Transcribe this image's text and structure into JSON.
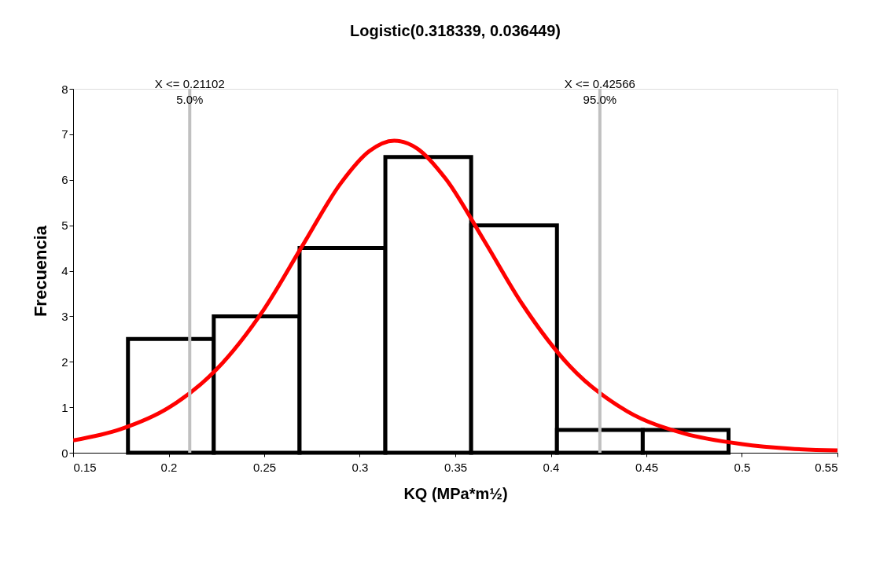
{
  "chart_data": {
    "type": "histogram",
    "title": "Logistic(0.318339, 0.036449)",
    "xlabel": "KQ (MPa*m½)",
    "ylabel": "Frecuencia",
    "bins": [
      0.1787,
      0.2236,
      0.2685,
      0.3134,
      0.3583,
      0.4032,
      0.4481,
      0.493
    ],
    "values": [
      2.5,
      3,
      4.5,
      6.5,
      5,
      0.5,
      0.5
    ],
    "color": "#ffffff",
    "series": [
      {
        "type": "line",
        "color": "#ff0000",
        "x": [
          0.15,
          0.175,
          0.2,
          0.225,
          0.25,
          0.27,
          0.29,
          0.305,
          0.318,
          0.33,
          0.345,
          0.365,
          0.385,
          0.41,
          0.44,
          0.47,
          0.5,
          0.525,
          0.55
        ],
        "values": [
          0.27,
          0.52,
          0.99,
          1.83,
          3.16,
          4.55,
          5.92,
          6.63,
          6.86,
          6.69,
          6.02,
          4.67,
          3.27,
          1.9,
          0.91,
          0.42,
          0.19,
          0.09,
          0.05
        ]
      }
    ],
    "ref_lines": [
      {
        "axis": "x",
        "value": 0.21102,
        "label": "X <= 0.21102\n5.0%",
        "color": "#c0c0c0"
      },
      {
        "axis": "x",
        "value": 0.42566,
        "label": "X <= 0.42566\n95.0%",
        "color": "#c0c0c0"
      }
    ],
    "xlim": [
      0.15,
      0.55
    ],
    "xticks": [
      0.15,
      0.2,
      0.25,
      0.3,
      0.35,
      0.4,
      0.45,
      0.5,
      0.55
    ],
    "ylim": [
      0,
      8
    ],
    "yticks": [
      0,
      1,
      2,
      3,
      4,
      5,
      6,
      7,
      8
    ],
    "legend": false,
    "grid": false
  }
}
